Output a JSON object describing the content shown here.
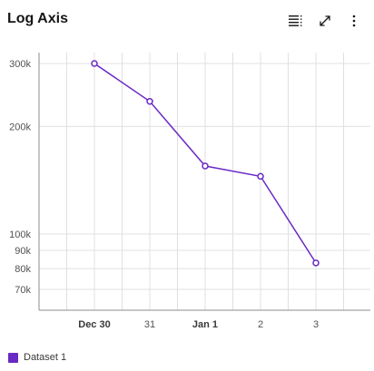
{
  "header": {
    "title": "Log Axis",
    "toolbar": [
      {
        "icon": "data-table-icon"
      },
      {
        "icon": "maximize-icon"
      },
      {
        "icon": "overflow-menu-icon"
      }
    ]
  },
  "colors": {
    "series": "#6929c4",
    "grid": "#e0e0e0",
    "axis": "#8d8d8d"
  },
  "chart_data": {
    "type": "line",
    "title": "Log Axis",
    "xlabel": "",
    "ylabel": "",
    "y_scale": "log",
    "ylim": [
      60000,
      320000
    ],
    "y_ticks": [
      {
        "value": 300000,
        "label": "300k"
      },
      {
        "value": 200000,
        "label": "200k"
      },
      {
        "value": 100000,
        "label": "100k"
      },
      {
        "value": 90000,
        "label": "90k"
      },
      {
        "value": 80000,
        "label": "80k"
      },
      {
        "value": 70000,
        "label": "70k"
      }
    ],
    "x_ticks": [
      {
        "label": "Dec 30",
        "bold": true
      },
      {
        "label": "31",
        "bold": false
      },
      {
        "label": "Jan 1",
        "bold": true
      },
      {
        "label": "2",
        "bold": false
      },
      {
        "label": "3",
        "bold": false
      }
    ],
    "grid": true,
    "legend_position": "bottom-left",
    "series": [
      {
        "name": "Dataset 1",
        "x": [
          "Dec 30",
          "31",
          "Jan 1",
          "2",
          "3"
        ],
        "values": [
          300000,
          235000,
          155000,
          145000,
          83000
        ]
      }
    ]
  },
  "legend": {
    "items": [
      {
        "label": "Dataset 1"
      }
    ]
  }
}
